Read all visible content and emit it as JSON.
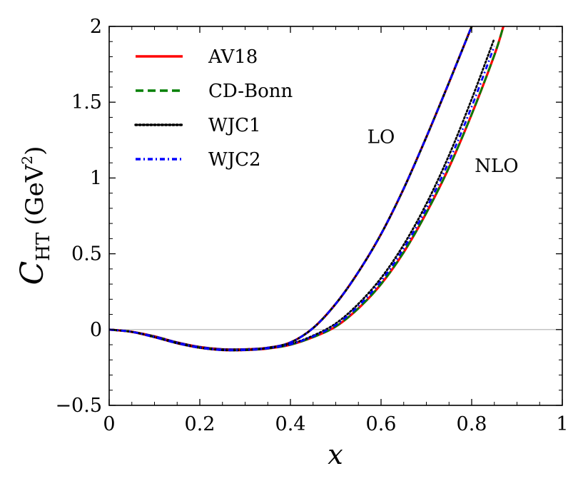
{
  "chart_data": {
    "type": "line",
    "xlabel": "x",
    "ylabel": {
      "main": "C",
      "sub": "HT",
      "unit_prefix": "(GeV",
      "unit_sup": "2",
      "unit_suffix": ")"
    },
    "xlim": [
      0,
      1
    ],
    "ylim": [
      -0.5,
      2
    ],
    "xticks": [
      0,
      0.2,
      0.4,
      0.6,
      0.8,
      1
    ],
    "xtick_labels": [
      "0",
      "0.2",
      "0.4",
      "0.6",
      "0.8",
      "1"
    ],
    "yticks": [
      -0.5,
      0,
      0.5,
      1,
      1.5,
      2
    ],
    "ytick_labels": [
      "−0.5",
      "0",
      "0.5",
      "1",
      "1.5",
      "2"
    ],
    "grid": false,
    "zero_line": true,
    "legend_position": "top-left",
    "annotations": [
      {
        "text": "LO",
        "x": 0.6,
        "y": 1.23
      },
      {
        "text": "NLO",
        "x": 0.855,
        "y": 1.04
      }
    ],
    "x": [
      0,
      0.05,
      0.1,
      0.15,
      0.2,
      0.25,
      0.3,
      0.35,
      0.4,
      0.45,
      0.5,
      0.55,
      0.6,
      0.65,
      0.7,
      0.75,
      0.8,
      0.85,
      0.87
    ],
    "series": [
      {
        "name": "AV18",
        "color": "#ff0000",
        "style": "solid",
        "group": "LO",
        "values": [
          0,
          -0.015,
          -0.045,
          -0.085,
          -0.115,
          -0.13,
          -0.13,
          -0.12,
          -0.085,
          0.01,
          0.17,
          0.38,
          0.63,
          0.93,
          1.27,
          1.63,
          2.0,
          null,
          null
        ]
      },
      {
        "name": "CD-Bonn",
        "color": "#007f00",
        "style": "dashed",
        "group": "LO",
        "values": [
          0,
          -0.015,
          -0.045,
          -0.085,
          -0.115,
          -0.13,
          -0.13,
          -0.12,
          -0.085,
          0.01,
          0.17,
          0.38,
          0.63,
          0.93,
          1.27,
          1.63,
          2.0,
          null,
          null
        ]
      },
      {
        "name": "WJC1",
        "color": "#000000",
        "style": "dotted",
        "group": "LO",
        "values": [
          0,
          -0.015,
          -0.045,
          -0.085,
          -0.115,
          -0.13,
          -0.13,
          -0.12,
          -0.085,
          0.01,
          0.17,
          0.38,
          0.63,
          0.93,
          1.27,
          1.63,
          2.0,
          null,
          null
        ]
      },
      {
        "name": "WJC2",
        "color": "#0000ff",
        "style": "dashdot",
        "group": "LO",
        "values": [
          0,
          -0.015,
          -0.045,
          -0.085,
          -0.115,
          -0.13,
          -0.13,
          -0.12,
          -0.085,
          0.01,
          0.17,
          0.38,
          0.63,
          0.93,
          1.27,
          1.63,
          2.0,
          null,
          null
        ]
      },
      {
        "name": "AV18",
        "color": "#ff0000",
        "style": "solid",
        "group": "NLO",
        "values": [
          0,
          -0.015,
          -0.05,
          -0.09,
          -0.12,
          -0.135,
          -0.135,
          -0.125,
          -0.1,
          -0.05,
          0.02,
          0.14,
          0.3,
          0.51,
          0.77,
          1.07,
          1.42,
          1.81,
          2.0
        ]
      },
      {
        "name": "CD-Bonn",
        "color": "#007f00",
        "style": "dashed",
        "group": "NLO",
        "values": [
          0,
          -0.015,
          -0.05,
          -0.09,
          -0.12,
          -0.135,
          -0.135,
          -0.125,
          -0.1,
          -0.05,
          0.02,
          0.14,
          0.3,
          0.51,
          0.77,
          1.07,
          1.42,
          1.81,
          2.0
        ]
      },
      {
        "name": "WJC1",
        "color": "#000000",
        "style": "dotted",
        "group": "NLO",
        "values": [
          0,
          -0.015,
          -0.05,
          -0.09,
          -0.12,
          -0.135,
          -0.135,
          -0.123,
          -0.095,
          -0.04,
          0.04,
          0.17,
          0.34,
          0.56,
          0.83,
          1.15,
          1.52,
          1.92,
          null
        ]
      },
      {
        "name": "WJC2",
        "color": "#0000ff",
        "style": "dashdot",
        "group": "NLO",
        "values": [
          0,
          -0.015,
          -0.05,
          -0.09,
          -0.12,
          -0.135,
          -0.135,
          -0.124,
          -0.097,
          -0.045,
          0.03,
          0.155,
          0.32,
          0.535,
          0.8,
          1.11,
          1.47,
          1.87,
          null
        ]
      }
    ],
    "legend": [
      {
        "name": "AV18",
        "color": "#ff0000",
        "style": "solid"
      },
      {
        "name": "CD-Bonn",
        "color": "#007f00",
        "style": "dashed"
      },
      {
        "name": "WJC1",
        "color": "#000000",
        "style": "dotted"
      },
      {
        "name": "WJC2",
        "color": "#0000ff",
        "style": "dashdot"
      }
    ]
  }
}
